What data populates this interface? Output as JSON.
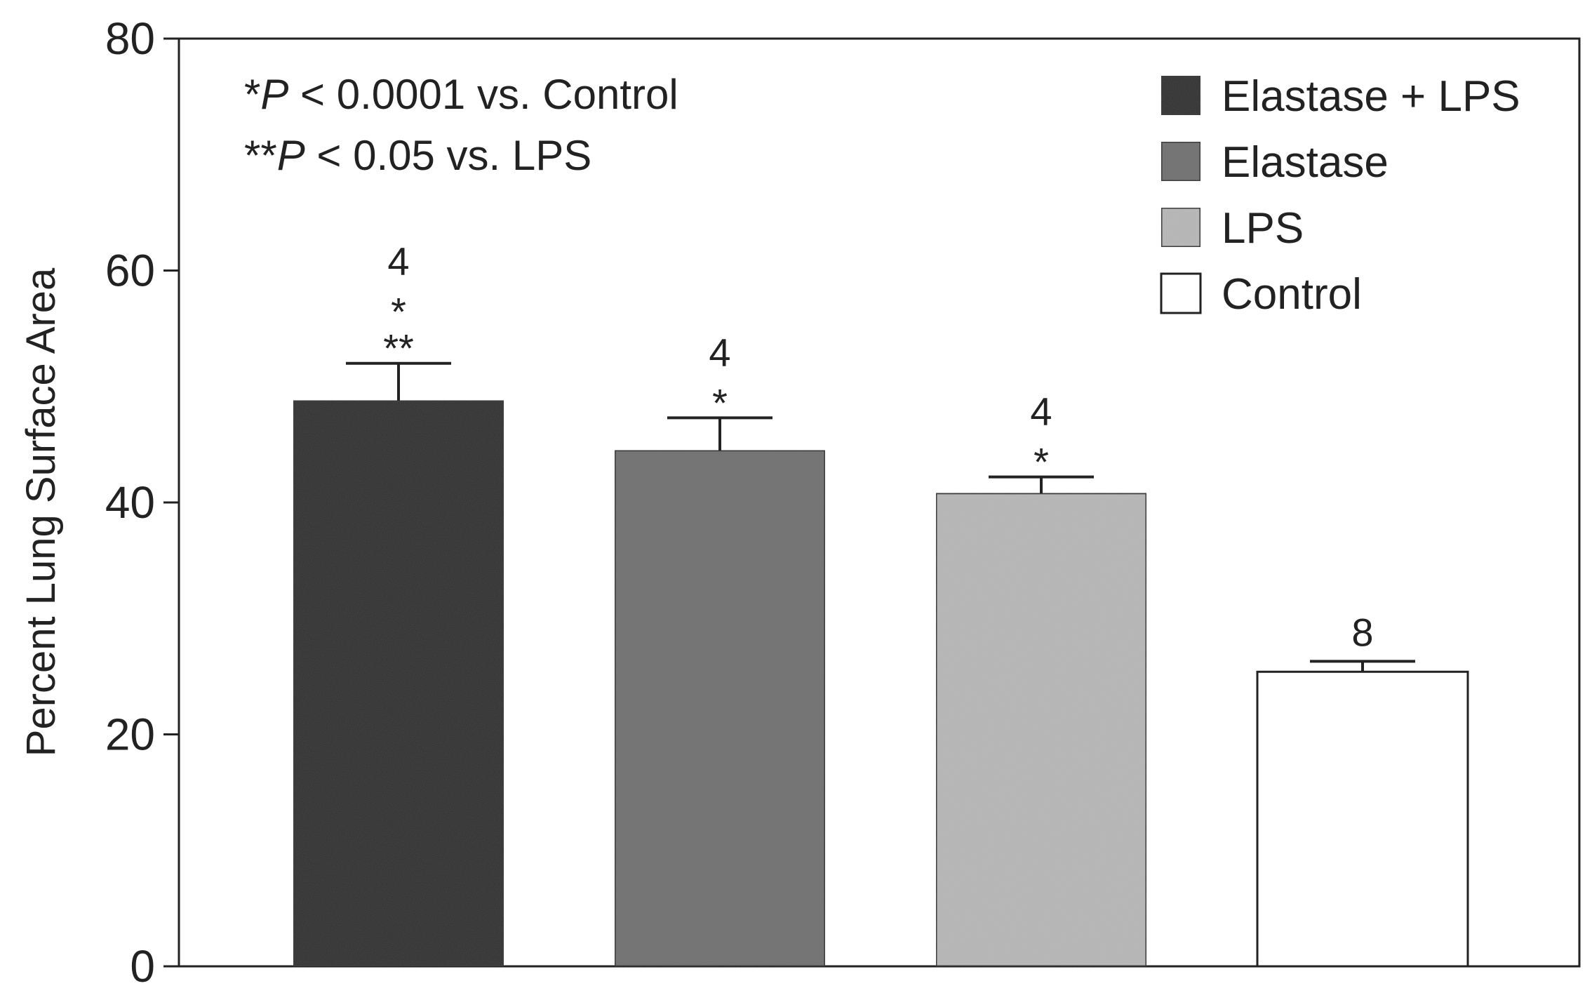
{
  "chart_data": {
    "type": "bar",
    "title": "",
    "xlabel": "",
    "ylabel": "Percent Lung Surface Area",
    "ylim": [
      0,
      80
    ],
    "yticks": [
      0,
      20,
      40,
      60,
      80
    ],
    "grid": false,
    "categories": [
      "Elastase + LPS",
      "Elastase",
      "LPS",
      "Control"
    ],
    "values": [
      48.8,
      44.5,
      40.8,
      25.4
    ],
    "errors": [
      3.2,
      2.8,
      1.4,
      0.9
    ],
    "colors": [
      "#1c1c1c",
      "#6e6e6e",
      "#b8b8b8",
      "#ffffff"
    ],
    "bar_labels": [
      [
        "4",
        "*",
        "**"
      ],
      [
        "4",
        "*"
      ],
      [
        "4",
        "*"
      ],
      [
        "8"
      ]
    ],
    "legend": {
      "position": "top-right",
      "entries": [
        "Elastase + LPS",
        "Elastase",
        "LPS",
        "Control"
      ]
    },
    "annotations": [
      {
        "prefix": "*",
        "italic": "P",
        "text": " < 0.0001 vs. Control"
      },
      {
        "prefix": "**",
        "italic": "P",
        "text": " < 0.05 vs. LPS"
      }
    ]
  }
}
